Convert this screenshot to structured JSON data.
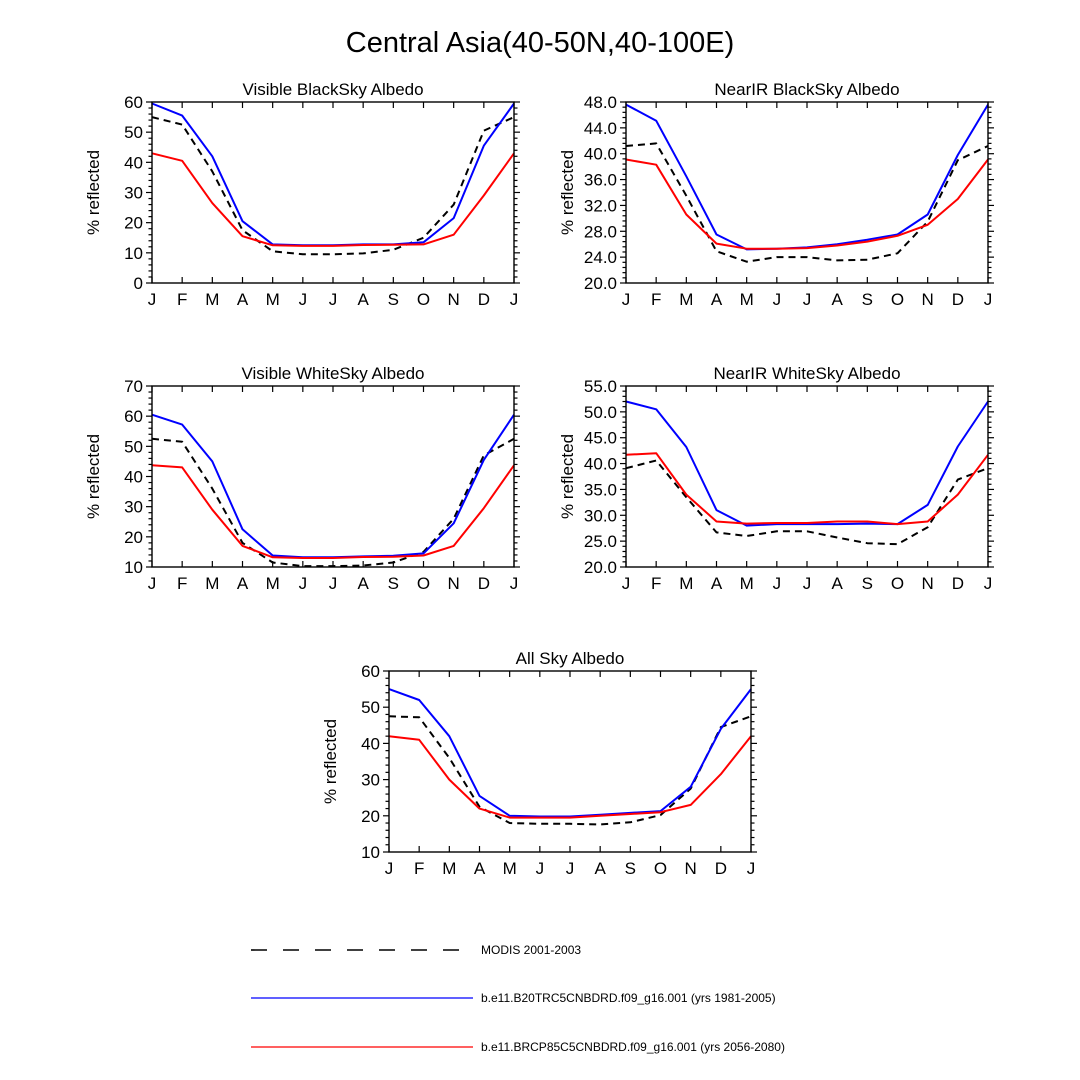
{
  "figure_title": "Central Asia(40-50N,40-100E)",
  "month_labels": [
    "J",
    "F",
    "M",
    "A",
    "M",
    "J",
    "J",
    "A",
    "S",
    "O",
    "N",
    "D",
    "J"
  ],
  "series_styles": {
    "modis": {
      "color": "#000000",
      "dash": true
    },
    "b20tr": {
      "color": "#0000ff",
      "dash": false
    },
    "brcp85": {
      "color": "#ff0000",
      "dash": false
    }
  },
  "legend": [
    {
      "key": "modis",
      "label": "MODIS 2001-2003"
    },
    {
      "key": "b20tr",
      "label": "b.e11.B20TRC5CNBDRD.f09_g16.001 (yrs 1981-2005)"
    },
    {
      "key": "brcp85",
      "label": "b.e11.BRCP85C5CNBDRD.f09_g16.001 (yrs 2056-2080)"
    }
  ],
  "chart_data": [
    {
      "type": "line",
      "title": "Visible BlackSky Albedo",
      "ylabel": "% reflected",
      "ylim": [
        0,
        60
      ],
      "yticks": [
        "0",
        "10",
        "20",
        "30",
        "40",
        "50",
        "60"
      ],
      "series": [
        {
          "key": "modis",
          "name": "MODIS 2001-2003",
          "values": [
            55,
            52.5,
            37,
            17.5,
            10.5,
            9.5,
            9.5,
            9.8,
            11,
            15,
            26,
            50.5,
            55
          ]
        },
        {
          "key": "b20tr",
          "name": "b.e11.B20TRC5CNBDRD.f09_g16.001 (yrs 1981-2005)",
          "values": [
            59.5,
            55.5,
            42,
            20.5,
            12.8,
            12.5,
            12.5,
            12.8,
            12.8,
            13.5,
            21.5,
            45.5,
            59.5
          ]
        },
        {
          "key": "brcp85",
          "name": "b.e11.BRCP85C5CNBDRD.f09_g16.001 (yrs 2056-2080)",
          "values": [
            43,
            40.5,
            26.5,
            15.5,
            12.5,
            12.3,
            12.3,
            12.6,
            12.7,
            12.8,
            16,
            29,
            43
          ]
        }
      ]
    },
    {
      "type": "line",
      "title": "NearIR BlackSky Albedo",
      "ylabel": "% reflected",
      "ylim": [
        20,
        48
      ],
      "yticks": [
        "20.0",
        "24.0",
        "28.0",
        "32.0",
        "36.0",
        "40.0",
        "44.0",
        "48.0"
      ],
      "series": [
        {
          "key": "modis",
          "name": "MODIS 2001-2003",
          "values": [
            41.2,
            41.6,
            33.5,
            24.9,
            23.3,
            24,
            24,
            23.5,
            23.6,
            24.6,
            29.5,
            39,
            41.2
          ]
        },
        {
          "key": "b20tr",
          "name": "b.e11.B20TRC5CNBDRD.f09_g16.001 (yrs 1981-2005)",
          "values": [
            47.6,
            45.1,
            36.5,
            27.5,
            25.2,
            25.3,
            25.5,
            26,
            26.7,
            27.5,
            30.6,
            39.8,
            47.6
          ]
        },
        {
          "key": "brcp85",
          "name": "b.e11.BRCP85C5CNBDRD.f09_g16.001 (yrs 2056-2080)",
          "values": [
            39.1,
            38.3,
            30.6,
            26.1,
            25.3,
            25.3,
            25.4,
            25.8,
            26.4,
            27.3,
            29,
            33,
            39.1
          ]
        }
      ]
    },
    {
      "type": "line",
      "title": "Visible WhiteSky Albedo",
      "ylabel": "% reflected",
      "ylim": [
        10,
        70
      ],
      "yticks": [
        "10",
        "20",
        "30",
        "40",
        "50",
        "60",
        "70"
      ],
      "series": [
        {
          "key": "modis",
          "name": "MODIS 2001-2003",
          "values": [
            52.5,
            51.5,
            36,
            18,
            11.5,
            10.3,
            10.3,
            10.5,
            11.5,
            15,
            26,
            47,
            52.5
          ]
        },
        {
          "key": "b20tr",
          "name": "b.e11.B20TRC5CNBDRD.f09_g16.001 (yrs 1981-2005)",
          "values": [
            60.5,
            57.2,
            45,
            22.5,
            13.8,
            13.2,
            13.2,
            13.5,
            13.7,
            14.5,
            24.5,
            45.5,
            60.5
          ]
        },
        {
          "key": "brcp85",
          "name": "b.e11.BRCP85C5CNBDRD.f09_g16.001 (yrs 2056-2080)",
          "values": [
            43.7,
            43,
            29,
            17,
            13.2,
            13,
            13,
            13.3,
            13.4,
            13.8,
            17,
            29.5,
            43.7
          ]
        }
      ]
    },
    {
      "type": "line",
      "title": "NearIR WhiteSky Albedo",
      "ylabel": "% reflected",
      "ylim": [
        20,
        55
      ],
      "yticks": [
        "20.0",
        "25.0",
        "30.0",
        "35.0",
        "40.0",
        "45.0",
        "50.0",
        "55.0"
      ],
      "series": [
        {
          "key": "modis",
          "name": "MODIS 2001-2003",
          "values": [
            39.1,
            40.6,
            33.5,
            26.7,
            26,
            26.9,
            26.9,
            25.7,
            24.6,
            24.4,
            27.7,
            36.9,
            39.1
          ]
        },
        {
          "key": "b20tr",
          "name": "b.e11.B20TRC5CNBDRD.f09_g16.001 (yrs 1981-2005)",
          "values": [
            52,
            50.5,
            43.2,
            31,
            28,
            28.3,
            28.3,
            28.3,
            28.4,
            28.3,
            32,
            43.3,
            52
          ]
        },
        {
          "key": "brcp85",
          "name": "b.e11.BRCP85C5CNBDRD.f09_g16.001 (yrs 2056-2080)",
          "values": [
            41.7,
            42,
            34,
            28.8,
            28.4,
            28.5,
            28.5,
            28.8,
            28.8,
            28.3,
            28.8,
            34,
            41.7
          ]
        }
      ]
    },
    {
      "type": "line",
      "title": "All Sky Albedo",
      "ylabel": "% reflected",
      "ylim": [
        10,
        60
      ],
      "yticks": [
        "10",
        "20",
        "30",
        "40",
        "50",
        "60"
      ],
      "series": [
        {
          "key": "modis",
          "name": "MODIS 2001-2003",
          "values": [
            47.5,
            47.2,
            36,
            22.5,
            18,
            17.8,
            17.8,
            17.6,
            18.2,
            20.2,
            27.5,
            44.5,
            47.5
          ]
        },
        {
          "key": "b20tr",
          "name": "b.e11.B20TRC5CNBDRD.f09_g16.001 (yrs 1981-2005)",
          "values": [
            55,
            52,
            42,
            25.5,
            20,
            19.8,
            19.8,
            20.3,
            20.8,
            21.3,
            28,
            44,
            55
          ]
        },
        {
          "key": "brcp85",
          "name": "b.e11.BRCP85C5CNBDRD.f09_g16.001 (yrs 2056-2080)",
          "values": [
            42,
            41,
            30,
            22,
            19.5,
            19.5,
            19.5,
            20,
            20.5,
            21,
            23,
            31.5,
            42
          ]
        }
      ]
    }
  ]
}
